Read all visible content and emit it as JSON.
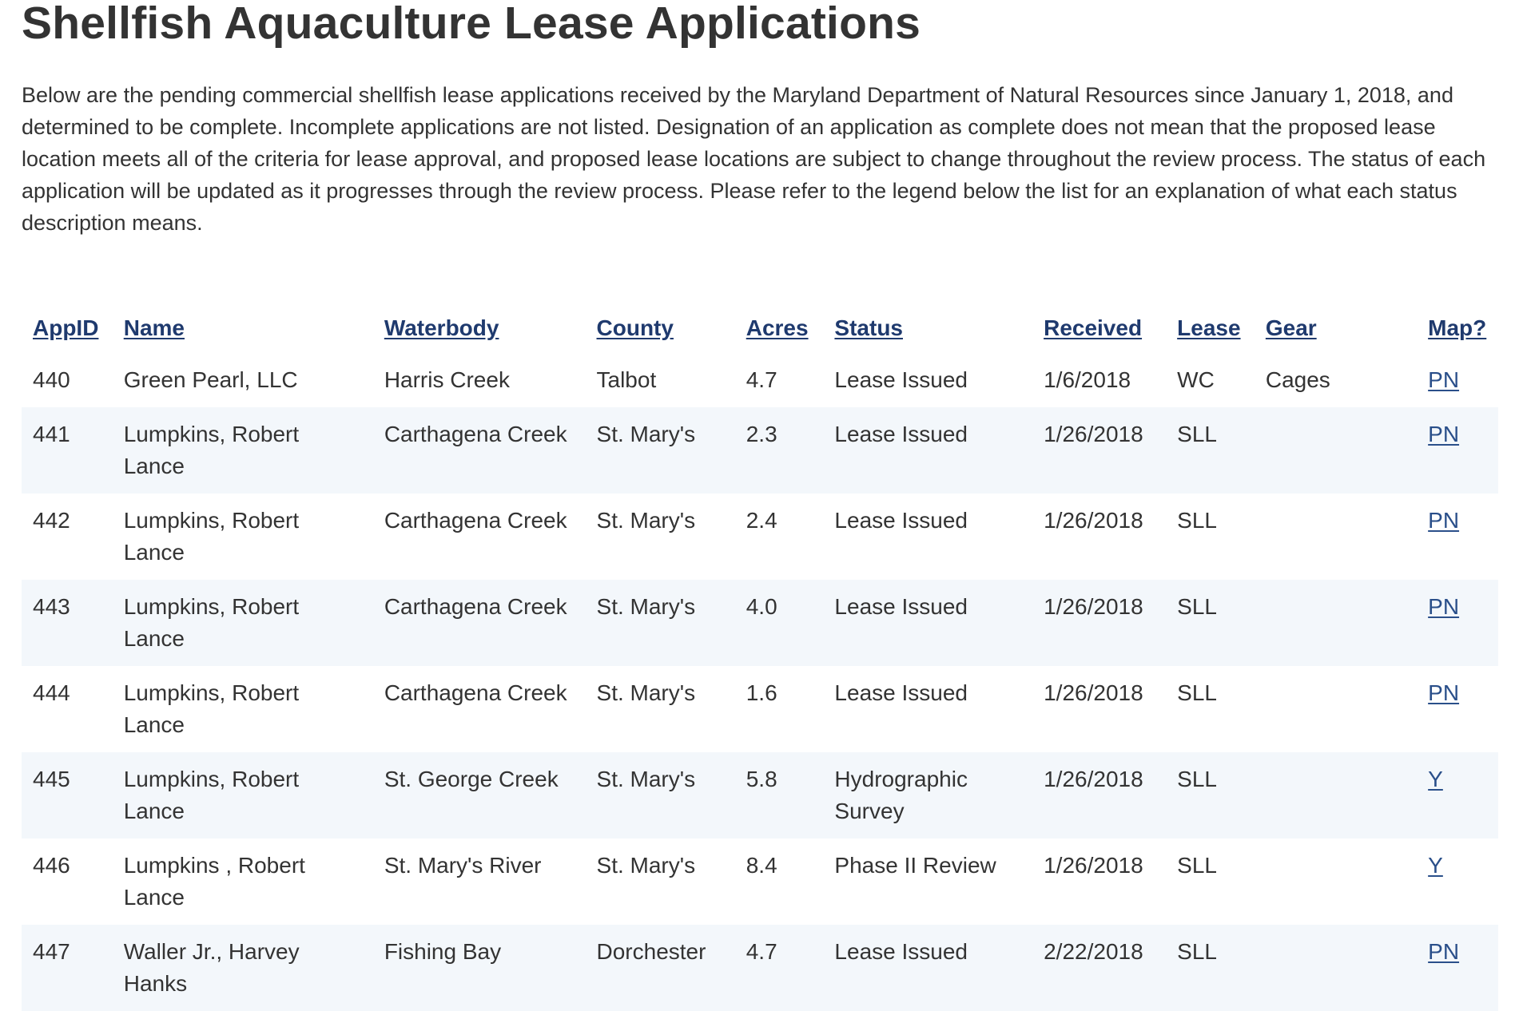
{
  "page": {
    "title": "Shellfish Aquaculture Lease Applications",
    "intro": "Below are the pending commercial shellfish lease applications received by the Maryland Department of Natural Resources since January 1, 2018, and determined to be complete. Incomplete applications are not listed. Designation of an application as complete does not mean that the proposed lease location meets all of the criteria for lease approval, and proposed lease locations are subject to change throughout the review process. The status of each application will be updated as it progresses through the review process. Please refer to the legend below the list for an explanation of what each status description means."
  },
  "table": {
    "headers": {
      "appid": "AppID",
      "name": "Name",
      "waterbody": "Waterbody",
      "county": "County",
      "acres": "Acres",
      "status": "Status",
      "received": "Received",
      "lease": "Lease",
      "gear": "Gear",
      "map": "Map?"
    },
    "rows": [
      {
        "appid": "440",
        "name": "Green Pearl, LLC",
        "waterbody": "Harris Creek",
        "county": "Talbot",
        "acres": "4.7",
        "status": "Lease Issued",
        "received": "1/6/2018",
        "lease": "WC",
        "gear": "Cages",
        "map": "PN"
      },
      {
        "appid": "441",
        "name": "Lumpkins, Robert Lance",
        "waterbody": "Carthagena Creek",
        "county": "St. Mary's",
        "acres": "2.3",
        "status": "Lease Issued",
        "received": "1/26/2018",
        "lease": "SLL",
        "gear": "",
        "map": "PN"
      },
      {
        "appid": "442",
        "name": "Lumpkins, Robert Lance",
        "waterbody": "Carthagena Creek",
        "county": "St. Mary's",
        "acres": "2.4",
        "status": "Lease Issued",
        "received": "1/26/2018",
        "lease": "SLL",
        "gear": "",
        "map": "PN"
      },
      {
        "appid": "443",
        "name": "Lumpkins, Robert Lance",
        "waterbody": "Carthagena Creek",
        "county": "St. Mary's",
        "acres": "4.0",
        "status": "Lease Issued",
        "received": "1/26/2018",
        "lease": "SLL",
        "gear": "",
        "map": "PN"
      },
      {
        "appid": "444",
        "name": "Lumpkins, Robert Lance",
        "waterbody": "Carthagena Creek",
        "county": "St. Mary's",
        "acres": "1.6",
        "status": "Lease Issued",
        "received": "1/26/2018",
        "lease": "SLL",
        "gear": "",
        "map": "PN"
      },
      {
        "appid": "445",
        "name": "Lumpkins, Robert Lance",
        "waterbody": "St. George Creek",
        "county": "St. Mary's",
        "acres": "5.8",
        "status": "Hydrographic Survey",
        "received": "1/26/2018",
        "lease": "SLL",
        "gear": "",
        "map": "Y"
      },
      {
        "appid": "446",
        "name": "Lumpkins , Robert Lance",
        "waterbody": "St. Mary's River",
        "county": "St. Mary's",
        "acres": "8.4",
        "status": "Phase II Review",
        "received": "1/26/2018",
        "lease": "SLL",
        "gear": "",
        "map": "Y"
      },
      {
        "appid": "447",
        "name": "Waller Jr., Harvey Hanks",
        "waterbody": "Fishing Bay",
        "county": "Dorchester",
        "acres": "4.7",
        "status": "Lease Issued",
        "received": "2/22/2018",
        "lease": "SLL",
        "gear": "",
        "map": "PN"
      }
    ]
  }
}
